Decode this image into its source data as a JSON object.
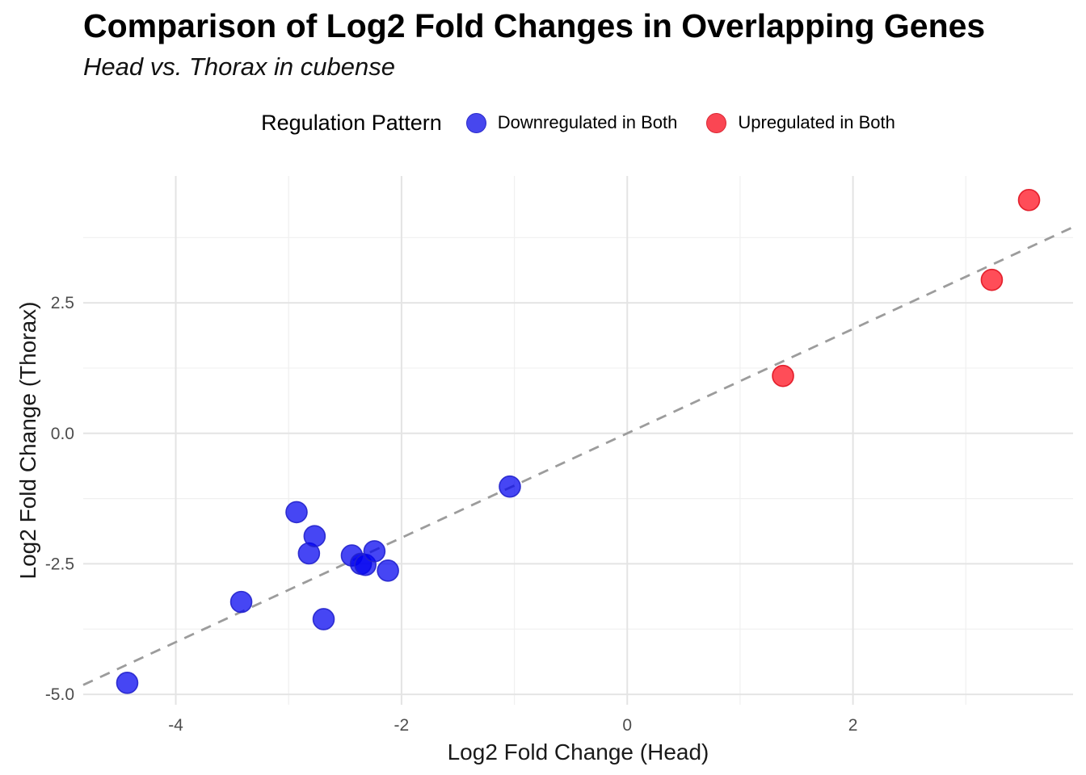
{
  "legend": {
    "title": "Regulation Pattern",
    "items": [
      {
        "label": "Downregulated in Both",
        "color": "#4747EE",
        "border": "#2B2BCB"
      },
      {
        "label": "Upregulated in Both",
        "color": "#FA4653",
        "border": "#DB2834"
      }
    ]
  },
  "chart_data": {
    "type": "scatter",
    "title": "Comparison of Log2 Fold Changes in Overlapping Genes",
    "subtitle": "Head vs. Thorax in cubense",
    "xlabel": "Log2 Fold Change (Head)",
    "ylabel": "Log2 Fold Change (Thorax)",
    "xlim": [
      -4.82,
      3.95
    ],
    "ylim": [
      -5.2,
      4.93
    ],
    "x_tick_values": [
      -4,
      -2,
      0,
      2
    ],
    "x_tick_labels": [
      "-4",
      "-2",
      "0",
      "2"
    ],
    "x_minor_tick_values": [
      -3,
      -1,
      1,
      3
    ],
    "y_tick_values": [
      -5.0,
      -2.5,
      0.0,
      2.5
    ],
    "y_tick_labels": [
      "-5.0",
      "-2.5",
      "0.0",
      "2.5"
    ],
    "y_minor_tick_values": [
      -3.75,
      -1.25,
      1.25,
      3.75
    ],
    "grid": true,
    "legend_position": "top",
    "reference_line": {
      "kind": "identity",
      "slope": 1,
      "intercept": 0,
      "style": "dashed",
      "color": "#9C9C9C"
    },
    "series": [
      {
        "name": "Downregulated in Both",
        "fill": "#0202F0",
        "fill_opacity": 0.73,
        "stroke": "#2222CC",
        "points": [
          [
            -4.43,
            -4.78
          ],
          [
            -3.42,
            -3.23
          ],
          [
            -2.93,
            -1.51
          ],
          [
            -2.82,
            -2.3
          ],
          [
            -2.77,
            -1.97
          ],
          [
            -2.69,
            -3.56
          ],
          [
            -2.44,
            -2.34
          ],
          [
            -2.36,
            -2.5
          ],
          [
            -2.32,
            -2.52
          ],
          [
            -2.24,
            -2.26
          ],
          [
            -2.12,
            -2.63
          ],
          [
            -1.04,
            -1.02
          ]
        ]
      },
      {
        "name": "Upregulated in Both",
        "fill": "#FF1220",
        "fill_opacity": 0.75,
        "stroke": "#E0121F",
        "points": [
          [
            1.38,
            1.1
          ],
          [
            3.23,
            2.94
          ],
          [
            3.56,
            4.47
          ]
        ]
      }
    ],
    "style": {
      "grid_major_color": "#E4E4E4",
      "grid_minor_color": "#F0F0F0",
      "tick_label_color": "#4D4D4D",
      "axis_title_color": "#1A1A1A"
    }
  }
}
